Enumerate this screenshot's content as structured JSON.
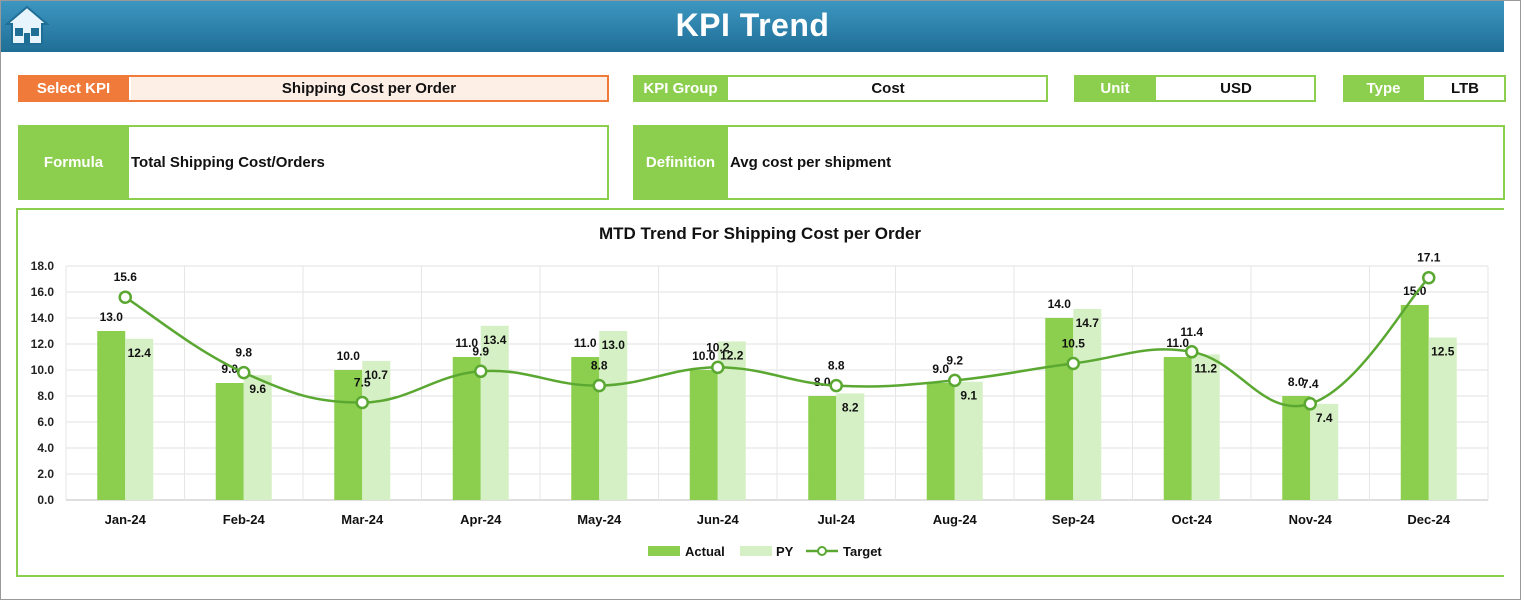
{
  "header": {
    "title": "KPI Trend"
  },
  "select_kpi": {
    "label": "Select KPI",
    "value": "Shipping Cost per Order"
  },
  "kpi_group": {
    "label": "KPI Group",
    "value": "Cost"
  },
  "unit": {
    "label": "Unit",
    "value": "USD"
  },
  "type": {
    "label": "Type",
    "value": "LTB"
  },
  "formula": {
    "label": "Formula",
    "value": "Total Shipping Cost/Orders"
  },
  "definition": {
    "label": "Definition",
    "value": "Avg cost per shipment"
  },
  "colors": {
    "header": "#2a7fa9",
    "accent": "#8ccf4f",
    "select": "#f07a3a",
    "actual": "#8ccf4f",
    "py": "#d6f0c6",
    "target": "#5aa832"
  },
  "chart_data": {
    "type": "bar",
    "title": "MTD Trend For Shipping Cost per Order",
    "categories": [
      "Jan-24",
      "Feb-24",
      "Mar-24",
      "Apr-24",
      "May-24",
      "Jun-24",
      "Jul-24",
      "Aug-24",
      "Sep-24",
      "Oct-24",
      "Nov-24",
      "Dec-24"
    ],
    "series": [
      {
        "name": "Actual",
        "kind": "bar",
        "values": [
          13.0,
          9.0,
          10.0,
          11.0,
          11.0,
          10.0,
          8.0,
          9.0,
          14.0,
          11.0,
          8.0,
          15.0
        ]
      },
      {
        "name": "PY",
        "kind": "bar",
        "values": [
          12.4,
          9.6,
          10.7,
          13.4,
          13.0,
          12.2,
          8.2,
          9.1,
          14.7,
          11.2,
          7.4,
          12.5
        ]
      },
      {
        "name": "Target",
        "kind": "line",
        "values": [
          15.6,
          9.8,
          7.5,
          9.9,
          8.8,
          10.2,
          8.8,
          9.2,
          10.5,
          11.4,
          7.4,
          17.1
        ]
      }
    ],
    "ylim": [
      0,
      18
    ],
    "yticks": [
      "0.0",
      "2.0",
      "4.0",
      "6.0",
      "8.0",
      "10.0",
      "12.0",
      "14.0",
      "16.0",
      "18.0"
    ],
    "grid": true,
    "legend": "bottom"
  }
}
